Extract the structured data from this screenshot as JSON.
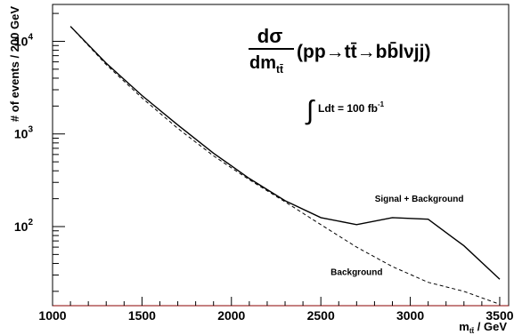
{
  "chart_data": {
    "type": "line",
    "xlabel_main": "m",
    "xlabel_sub": "tt̄",
    "xlabel_unit": " / GeV",
    "ylabel": "# of events / 200 GeV",
    "xlim": [
      1000,
      3550
    ],
    "ylim": [
      14,
      25000
    ],
    "y_scale": "log",
    "grid": false,
    "x_ticks": [
      1000,
      1500,
      2000,
      2500,
      3000,
      3500
    ],
    "x_tick_labels": [
      "1000",
      "1500",
      "2000",
      "2500",
      "3000",
      "3500"
    ],
    "y_ticks": [
      100,
      1000,
      10000
    ],
    "y_tick_bases": [
      "10",
      "10",
      "10"
    ],
    "y_tick_exponents": [
      "2",
      "3",
      "4"
    ],
    "formula": {
      "numerator": "dσ",
      "denominator_main": "dm",
      "denominator_sub": "tt̄",
      "process": "(pp→tt̄→bb̄lνjj)"
    },
    "luminosity": {
      "integral_sign": "∫",
      "text": "Ldt = 100 fb",
      "exponent": "-1"
    },
    "series": [
      {
        "name": "Signal + Background",
        "style": "solid",
        "x": [
          1100,
          1300,
          1500,
          1700,
          1900,
          2100,
          2300,
          2500,
          2700,
          2900,
          3100,
          3300,
          3500
        ],
        "y": [
          14500,
          5800,
          2600,
          1250,
          620,
          330,
          190,
          125,
          105,
          125,
          120,
          62,
          27
        ]
      },
      {
        "name": "Background",
        "style": "dashed",
        "x": [
          1100,
          1300,
          1500,
          1700,
          1900,
          2100,
          2300,
          2500,
          2700,
          2900,
          3100,
          3300,
          3500
        ],
        "y": [
          14500,
          5600,
          2450,
          1150,
          580,
          320,
          185,
          105,
          60,
          37,
          25,
          20,
          14.5
        ]
      }
    ],
    "labels": [
      {
        "text": "Signal + Background",
        "x": 3050,
        "y": 185
      },
      {
        "text": "Background",
        "x": 2700,
        "y": 30
      }
    ]
  }
}
